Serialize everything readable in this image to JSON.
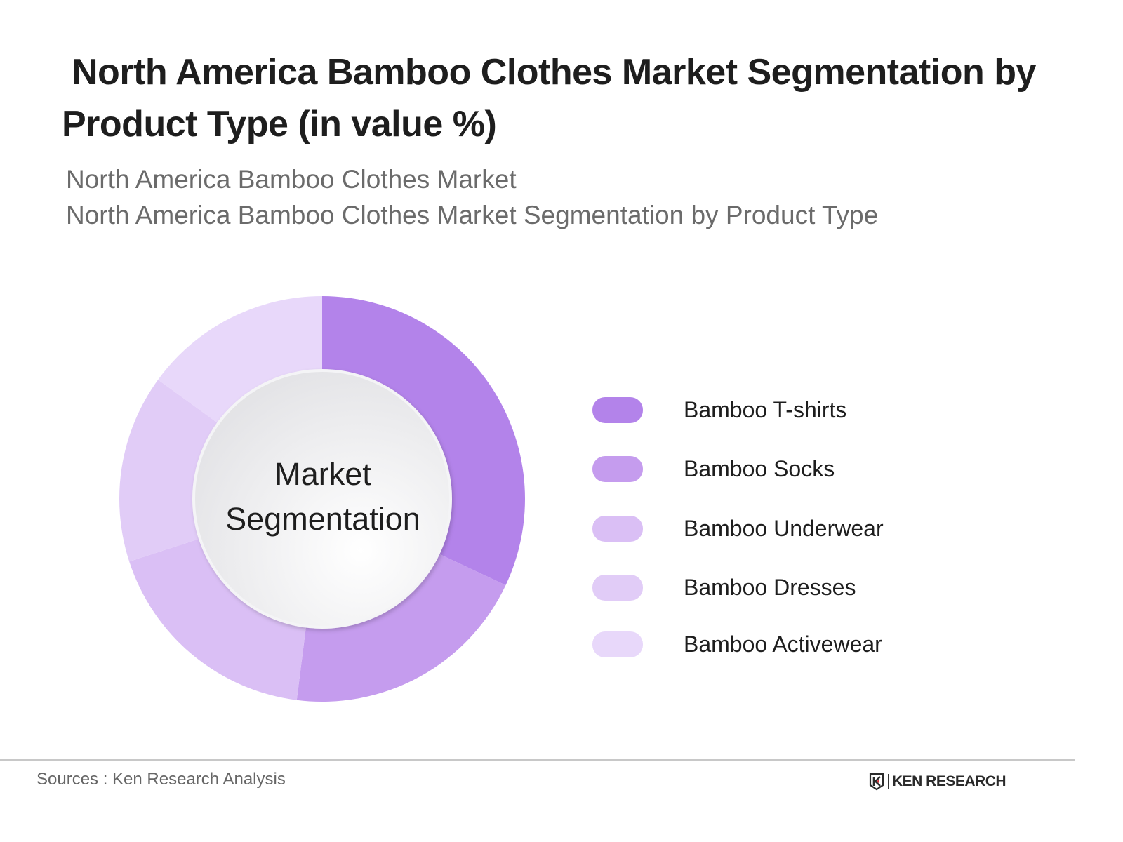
{
  "title": {
    "line1": "North America Bamboo Clothes Market  Segmentation by",
    "line2": "Product Type (in value %)"
  },
  "subtitle": {
    "line1": "North America Bamboo Clothes Market",
    "line2": "North America Bamboo Clothes Market  Segmentation by Product Type"
  },
  "center_label": {
    "line1": "Market",
    "line2": "Segmentation"
  },
  "legend": [
    {
      "label": "Bamboo T-shirts",
      "color": "#b383ea"
    },
    {
      "label": "Bamboo Socks",
      "color": "#c59cee"
    },
    {
      "label": "Bamboo Underwear",
      "color": "#dabff5"
    },
    {
      "label": "Bamboo Dresses",
      "color": "#e1ccf7"
    },
    {
      "label": "Bamboo Activewear",
      "color": "#e8d8fa"
    }
  ],
  "footer": {
    "sources": "Sources : Ken Research Analysis",
    "logo_text": "KEN RESEARCH"
  },
  "chart_data": {
    "type": "pie",
    "variant": "donut",
    "title": "North America Bamboo Clothes Market  Segmentation by Product Type (in value %)",
    "subtitle": "North America Bamboo Clothes Market / North America Bamboo Clothes Market  Segmentation by Product Type",
    "center_text": "Market Segmentation",
    "categories": [
      "Bamboo T-shirts",
      "Bamboo Socks",
      "Bamboo Underwear",
      "Bamboo Dresses",
      "Bamboo Activewear"
    ],
    "values": [
      32,
      20,
      18,
      15,
      15
    ],
    "colors": [
      "#b383ea",
      "#c59cee",
      "#dabff5",
      "#e1ccf7",
      "#e8d8fa"
    ],
    "unit": "%",
    "start_angle": "12 o'clock, clockwise",
    "legend_position": "right",
    "data_labels": false,
    "source": "Sources : Ken Research Analysis"
  }
}
